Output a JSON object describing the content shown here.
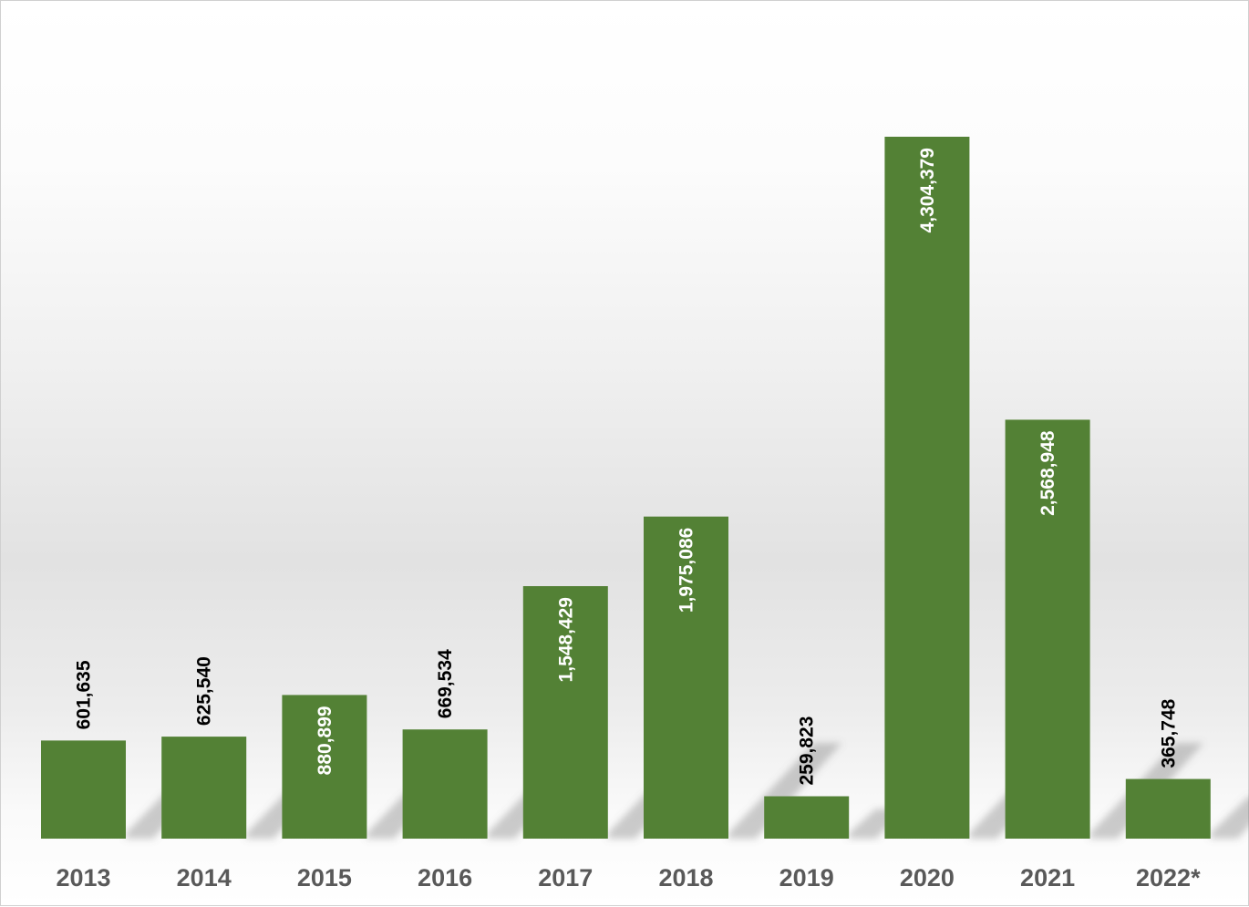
{
  "chart_data": {
    "type": "bar",
    "categories": [
      "2013",
      "2014",
      "2015",
      "2016",
      "2017",
      "2018",
      "2019",
      "2020",
      "2021",
      "2022*"
    ],
    "values": [
      601635,
      625540,
      880899,
      669534,
      1548429,
      1975086,
      259823,
      4304379,
      2568948,
      365748
    ],
    "value_labels": [
      "601,635",
      "625,540",
      "880,899",
      "669,534",
      "1,548,429",
      "1,975,086",
      "259,823",
      "4,304,379",
      "2,568,948",
      "365,748"
    ],
    "title": "",
    "xlabel": "",
    "ylabel": "",
    "ylim": [
      0,
      4304379
    ],
    "grid": false,
    "legend": "none",
    "colors": {
      "bar": "#538135",
      "label_inside": "#ffffff",
      "label_outside": "#000000",
      "tick": "#595959"
    }
  }
}
